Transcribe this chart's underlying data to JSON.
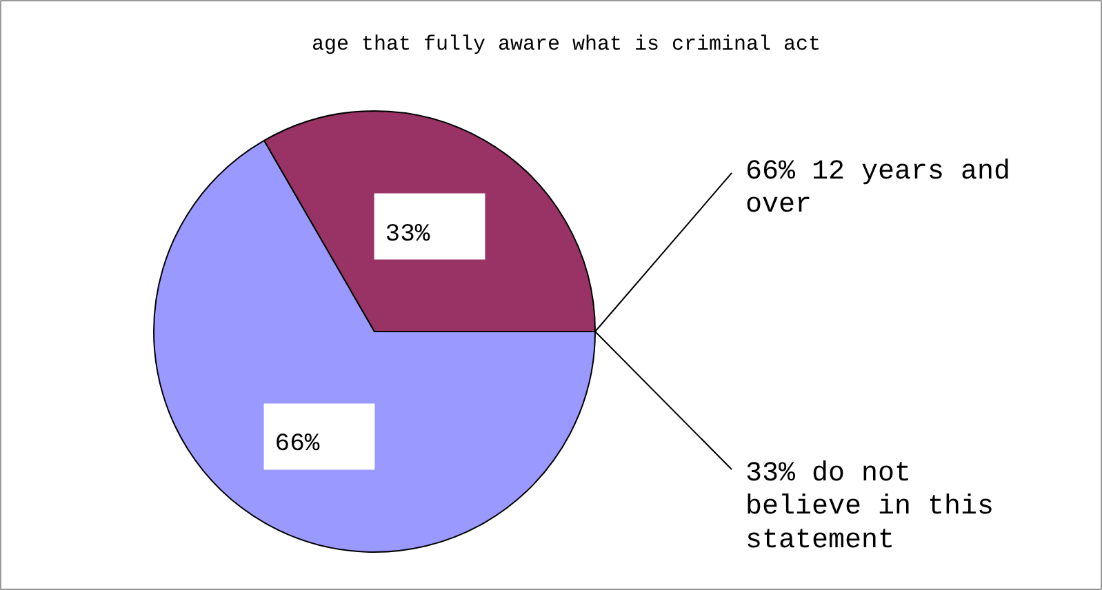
{
  "chart_data": {
    "type": "pie",
    "title": "age that fully aware what is criminal act",
    "categories": [
      "12 years and over",
      "do not believe in this statement"
    ],
    "values": [
      66,
      33
    ],
    "colors": [
      "#9999ff",
      "#993366"
    ],
    "value_labels": [
      "66%",
      "33%"
    ]
  }
}
